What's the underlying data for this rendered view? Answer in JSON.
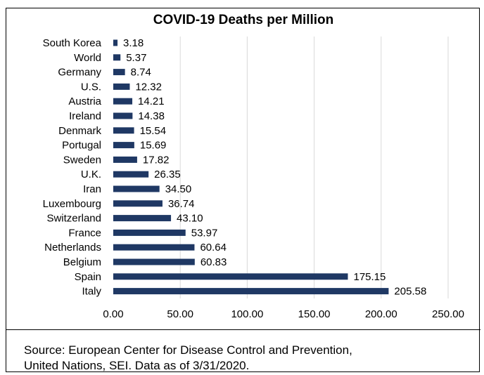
{
  "chart_data": {
    "type": "bar",
    "orientation": "horizontal",
    "title": "COVID-19 Deaths per Million",
    "categories": [
      "South Korea",
      "World",
      "Germany",
      "U.S.",
      "Austria",
      "Ireland",
      "Denmark",
      "Portugal",
      "Sweden",
      "U.K.",
      "Iran",
      "Luxembourg",
      "Switzerland",
      "France",
      "Netherlands",
      "Belgium",
      "Spain",
      "Italy"
    ],
    "values": [
      3.18,
      5.37,
      8.74,
      12.32,
      14.21,
      14.38,
      15.54,
      15.69,
      17.82,
      26.35,
      34.5,
      36.74,
      43.1,
      53.97,
      60.64,
      60.83,
      175.15,
      205.58
    ],
    "value_labels": [
      "3.18",
      "5.37",
      "8.74",
      "12.32",
      "14.21",
      "14.38",
      "15.54",
      "15.69",
      "17.82",
      "26.35",
      "34.50",
      "36.74",
      "43.10",
      "53.97",
      "60.64",
      "60.83",
      "175.15",
      "205.58"
    ],
    "xlim": [
      0,
      250
    ],
    "x_ticks": [
      "0.00",
      "50.00",
      "100.00",
      "150.00",
      "200.00",
      "250.00"
    ],
    "x_tick_values": [
      0,
      50,
      100,
      150,
      200,
      250
    ],
    "grid": true,
    "bar_color": "#1f3864",
    "grid_color": "#d9d9d9"
  },
  "source": {
    "line1": "Source: European Center for Disease Control and Prevention,",
    "line2": "United Nations, SEI. Data as of 3/31/2020."
  }
}
